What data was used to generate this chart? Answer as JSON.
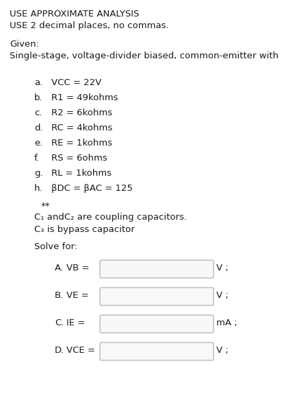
{
  "title_lines": [
    "USE APPROXIMATE ANALYSIS",
    "USE 2 decimal places, no commas."
  ],
  "given_label": "Given:",
  "given_desc": "Single-stage, voltage-divider biased, common-emitter with",
  "params": [
    [
      "a.",
      "VCC = 22V"
    ],
    [
      "b.",
      "R1 = 49kohms"
    ],
    [
      "c.",
      "R2 = 6kohms"
    ],
    [
      "d.",
      "RC = 4kohms"
    ],
    [
      "e.",
      "RE = 1kohms"
    ],
    [
      "f.",
      "RS = 6ohms"
    ],
    [
      "g.",
      "RL = 1kohms"
    ],
    [
      "h.",
      "βDC = βAC = 125"
    ]
  ],
  "note_star": "**",
  "note_c1": "C₁ andC₂ are coupling capacitors.",
  "note_c3": "C₃ is bypass capacitor",
  "solve_label": "Solve for:",
  "solve_items": [
    [
      "A.",
      "VB =",
      "V ;"
    ],
    [
      "B.",
      "VE =",
      "V ;"
    ],
    [
      "C.",
      "IE =",
      "mA ;"
    ],
    [
      "D.",
      "VCE =",
      "V ;"
    ]
  ],
  "bg_color": "#ffffff",
  "text_color": "#1a1a1a",
  "box_edge_color": "#aaaaaa",
  "box_fill_color": "#f8f8f8",
  "font_size": 9.5,
  "font_family": "sans-serif"
}
